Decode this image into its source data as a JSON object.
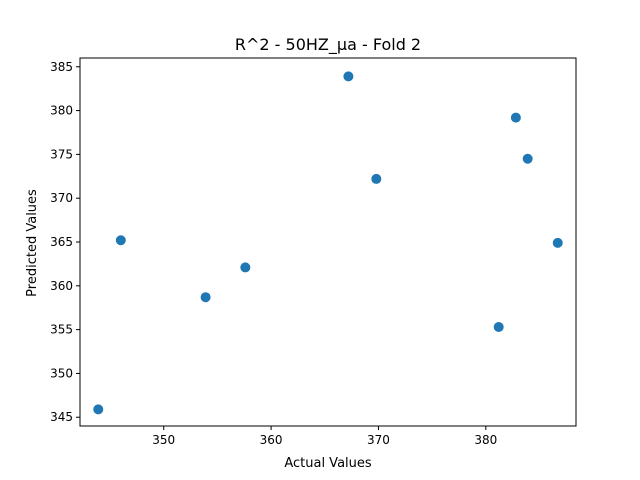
{
  "chart_data": {
    "type": "scatter",
    "title": "R^2 - 50HZ_µa - Fold 2",
    "xlabel": "Actual Values",
    "ylabel": "Predicted Values",
    "xlim": [
      342.2,
      388.4
    ],
    "ylim": [
      344.0,
      386.0
    ],
    "xticks": [
      350,
      360,
      370,
      380
    ],
    "yticks": [
      345,
      350,
      355,
      360,
      365,
      370,
      375,
      380,
      385
    ],
    "grid": false,
    "marker_color": "#1f77b4",
    "series": [
      {
        "points": [
          {
            "x": 343.9,
            "y": 345.9
          },
          {
            "x": 346.0,
            "y": 365.2
          },
          {
            "x": 353.9,
            "y": 358.7
          },
          {
            "x": 357.6,
            "y": 362.1
          },
          {
            "x": 367.2,
            "y": 383.9
          },
          {
            "x": 369.8,
            "y": 372.2
          },
          {
            "x": 381.2,
            "y": 355.3
          },
          {
            "x": 382.8,
            "y": 379.2
          },
          {
            "x": 383.9,
            "y": 374.5
          },
          {
            "x": 386.7,
            "y": 364.9
          }
        ]
      }
    ]
  }
}
